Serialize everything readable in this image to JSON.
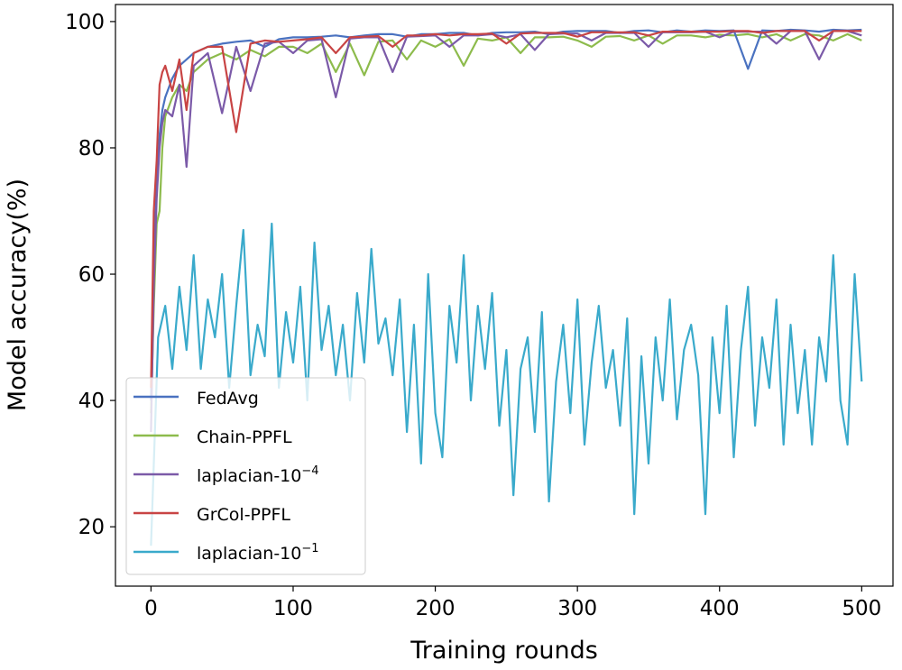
{
  "chart_data": {
    "type": "line",
    "title": "",
    "xlabel": "Training rounds",
    "ylabel": "Model accuracy(%)",
    "xlim": [
      -25,
      522
    ],
    "ylim": [
      10.6,
      102.7
    ],
    "xticks": [
      0,
      100,
      200,
      300,
      400,
      500
    ],
    "yticks": [
      20,
      40,
      60,
      80,
      100
    ],
    "xtick_labels": [
      "0",
      "100",
      "200",
      "300",
      "400",
      "500"
    ],
    "ytick_labels": [
      "20",
      "40",
      "60",
      "80",
      "100"
    ],
    "grid": false,
    "legend_position": "lower-left",
    "x_top": [
      0,
      2,
      4,
      6,
      8,
      10,
      15,
      20,
      25,
      30,
      35,
      40,
      50,
      60,
      70,
      80,
      90,
      100,
      110,
      120,
      130,
      140,
      150,
      160,
      170,
      180,
      190,
      200,
      210,
      220,
      230,
      240,
      250,
      260,
      270,
      280,
      290,
      300,
      310,
      320,
      330,
      340,
      350,
      360,
      370,
      380,
      390,
      400,
      410,
      420,
      430,
      440,
      450,
      460,
      470,
      480,
      490,
      500
    ],
    "series": [
      {
        "name": "FedAvg",
        "label_main": "FedAvg",
        "label_sup": "",
        "color": "#4a72c0",
        "xref": "x_top",
        "values": [
          40,
          62,
          74,
          82,
          86,
          88,
          91,
          93,
          94,
          95,
          95.5,
          96,
          96.5,
          96.8,
          97,
          96,
          97.2,
          97.5,
          97.5,
          97.6,
          97.8,
          97.5,
          97.8,
          98,
          98,
          97.6,
          98,
          98,
          98.2,
          98.2,
          97.8,
          98.2,
          98.3,
          98.3,
          98.4,
          98,
          98.4,
          98.5,
          98.5,
          98.5,
          98.2,
          98.5,
          98.6,
          98.3,
          98.6,
          98.4,
          98.6,
          98.5,
          98.6,
          92.5,
          98.6,
          98.5,
          98.7,
          98.6,
          98.4,
          98.7,
          98.6,
          98.7
        ]
      },
      {
        "name": "Chain-PPFL",
        "label_main": "Chain-PPFL",
        "label_sup": "",
        "color": "#8dbb4c",
        "xref": "x_top",
        "values": [
          38,
          55,
          68,
          70,
          80,
          85,
          88,
          90,
          89,
          92,
          93,
          94,
          95,
          94,
          95.5,
          94.5,
          96,
          96,
          95,
          96.5,
          92,
          96.5,
          91.5,
          96.8,
          97,
          94,
          97,
          96,
          97.2,
          93,
          97.3,
          97,
          97.5,
          95,
          97.5,
          97.5,
          97.6,
          97,
          96,
          97.6,
          97.7,
          97,
          97.8,
          96.5,
          97.8,
          97.8,
          97.5,
          97.9,
          97.8,
          98,
          97.5,
          98,
          97,
          98,
          97.8,
          97,
          98,
          97
        ]
      },
      {
        "name": "laplacian-10^-4",
        "label_main": "laplacian-10",
        "label_sup": "−4",
        "color": "#7b5aa8",
        "xref": "x_top",
        "values": [
          35,
          58,
          72,
          80,
          84,
          86,
          85,
          90,
          77,
          93,
          94,
          95,
          85.5,
          96,
          89,
          96.5,
          96.8,
          95,
          97,
          97.2,
          88,
          97.3,
          97.5,
          97.5,
          92,
          97.6,
          97.7,
          97.8,
          96,
          97.8,
          97.8,
          98,
          97.5,
          98,
          95.5,
          98,
          98.1,
          98.1,
          97,
          98.2,
          98.2,
          98.2,
          96,
          98.3,
          98.3,
          98.3,
          98.4,
          97.5,
          98.4,
          98.4,
          98.4,
          96.5,
          98.5,
          98.5,
          94,
          98.5,
          98.5,
          97.8
        ]
      },
      {
        "name": "GrCol-PPFL",
        "label_main": "GrCol-PPFL",
        "label_sup": "",
        "color": "#c84444",
        "xref": "x_top",
        "values": [
          42,
          70,
          78,
          90,
          92,
          93,
          89,
          94,
          86,
          95,
          95.5,
          96,
          96,
          82.5,
          96.5,
          97,
          96.8,
          97,
          97.2,
          97.5,
          95,
          97.5,
          97.6,
          97.7,
          96,
          97.8,
          97.8,
          98,
          97.8,
          98,
          98,
          98.1,
          96.5,
          98.1,
          98.2,
          98.2,
          98.2,
          97.6,
          98.3,
          98.3,
          98.3,
          98.3,
          97.8,
          98.4,
          98.4,
          98.4,
          98.4,
          98.4,
          98.5,
          98.5,
          98.2,
          98.5,
          98.5,
          98.5,
          97,
          98.5,
          98.5,
          98.5
        ]
      },
      {
        "name": "laplacian-10^-1",
        "label_main": "laplacian-10",
        "label_sup": "−1",
        "color": "#3aaacb",
        "xref": "x_low",
        "values": [
          17,
          50,
          55,
          45,
          58,
          48,
          63,
          45,
          56,
          50,
          60,
          42,
          55,
          67,
          44,
          52,
          47,
          68,
          42,
          54,
          46,
          58,
          40,
          65,
          48,
          55,
          44,
          52,
          40,
          57,
          46,
          64,
          49,
          53,
          44,
          56,
          35,
          52,
          30,
          60,
          38,
          31,
          55,
          46,
          63,
          40,
          55,
          45,
          57,
          36,
          48,
          25,
          45,
          50,
          35,
          54,
          24,
          43,
          52,
          38,
          56,
          33,
          46,
          55,
          42,
          48,
          36,
          53,
          22,
          47,
          30,
          50,
          40,
          56,
          37,
          48,
          52,
          44,
          22,
          50,
          38,
          55,
          31,
          48,
          58,
          36,
          50,
          42,
          56,
          33,
          52,
          38,
          48,
          33,
          50,
          43,
          63,
          40,
          33,
          60,
          43
        ]
      }
    ],
    "x_low_step": 5
  }
}
